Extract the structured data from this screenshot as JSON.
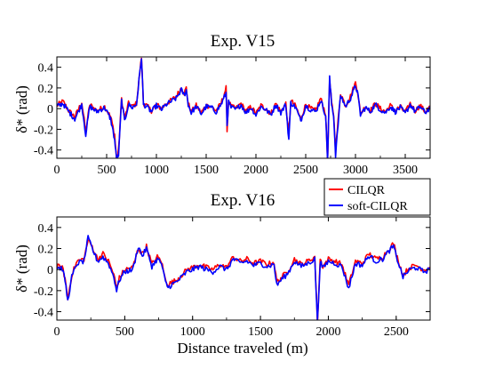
{
  "chart_data": [
    {
      "type": "line",
      "title": "Exp. V15",
      "xlabel": "",
      "ylabel": "δ* (rad)",
      "xlim": [
        0,
        3750
      ],
      "ylim": [
        -0.48,
        0.5
      ],
      "xticks": [
        0,
        500,
        1000,
        1500,
        2000,
        2500,
        3000,
        3500
      ],
      "yticks": [
        -0.4,
        -0.2,
        0,
        0.2,
        0.4
      ],
      "ytick_labels": [
        "-0.4",
        "-0.2",
        "0",
        "0.2",
        "0.4"
      ],
      "grid": false,
      "series": [
        {
          "name": "CILQR",
          "color": "#ff0000",
          "x": [
            0,
            60,
            120,
            180,
            250,
            290,
            330,
            400,
            480,
            540,
            580,
            600,
            620,
            650,
            680,
            720,
            760,
            800,
            850,
            870,
            900,
            950,
            1000,
            1050,
            1100,
            1150,
            1200,
            1250,
            1280,
            1300,
            1320,
            1350,
            1400,
            1450,
            1500,
            1550,
            1600,
            1650,
            1700,
            1710,
            1725,
            1750,
            1800,
            1850,
            1900,
            1950,
            2000,
            2050,
            2100,
            2150,
            2200,
            2250,
            2300,
            2330,
            2350,
            2400,
            2450,
            2500,
            2550,
            2600,
            2650,
            2700,
            2720,
            2740,
            2760,
            2780,
            2800,
            2850,
            2900,
            2950,
            3000,
            3020,
            3050,
            3100,
            3150,
            3200,
            3250,
            3300,
            3350,
            3400,
            3450,
            3500,
            3550,
            3600,
            3650,
            3700,
            3750
          ],
          "values": [
            0.03,
            0.07,
            -0.02,
            -0.08,
            0.06,
            -0.22,
            0.04,
            -0.02,
            0.02,
            -0.08,
            -0.25,
            -0.5,
            -0.4,
            0.1,
            -0.1,
            0.05,
            0.02,
            0.05,
            0.5,
            0.05,
            0.03,
            -0.02,
            0.04,
            0.0,
            0.05,
            0.08,
            0.12,
            0.2,
            0.15,
            0.2,
            0.05,
            -0.03,
            0.03,
            -0.04,
            0.03,
            0.02,
            -0.02,
            0.05,
            0.2,
            -0.2,
            0.08,
            0.02,
            0.0,
            0.05,
            -0.03,
            0.02,
            -0.05,
            0.03,
            0.0,
            -0.05,
            0.05,
            -0.03,
            0.05,
            -0.25,
            0.08,
            0.02,
            -0.1,
            0.04,
            0.0,
            -0.02,
            0.1,
            -0.05,
            -0.5,
            0.28,
            0.05,
            -0.05,
            -0.4,
            0.15,
            0.03,
            0.12,
            0.25,
            0.18,
            -0.05,
            0.02,
            -0.02,
            0.05,
            0.0,
            -0.03,
            0.03,
            -0.02,
            0.02,
            -0.04,
            0.05,
            -0.02,
            0.03,
            -0.03,
            0.02
          ]
        },
        {
          "name": "soft-CILQR",
          "color": "#0000ff",
          "x": [
            0,
            60,
            120,
            180,
            250,
            290,
            330,
            400,
            480,
            540,
            580,
            600,
            620,
            650,
            680,
            720,
            760,
            800,
            850,
            870,
            900,
            950,
            1000,
            1050,
            1100,
            1150,
            1200,
            1250,
            1280,
            1300,
            1320,
            1350,
            1400,
            1450,
            1500,
            1550,
            1600,
            1650,
            1700,
            1710,
            1725,
            1750,
            1800,
            1850,
            1900,
            1950,
            2000,
            2050,
            2100,
            2150,
            2200,
            2250,
            2300,
            2330,
            2350,
            2400,
            2450,
            2500,
            2550,
            2600,
            2650,
            2700,
            2720,
            2740,
            2760,
            2780,
            2800,
            2850,
            2900,
            2950,
            3000,
            3020,
            3050,
            3100,
            3150,
            3200,
            3250,
            3300,
            3350,
            3400,
            3450,
            3500,
            3550,
            3600,
            3650,
            3700,
            3750
          ],
          "values": [
            0.02,
            0.05,
            -0.03,
            -0.1,
            0.04,
            -0.25,
            0.02,
            -0.03,
            0.01,
            -0.1,
            -0.3,
            -0.5,
            -0.45,
            0.08,
            -0.12,
            0.04,
            0.01,
            0.04,
            0.5,
            0.04,
            0.02,
            -0.03,
            0.03,
            -0.01,
            0.04,
            0.07,
            0.1,
            0.18,
            0.13,
            0.18,
            0.04,
            -0.04,
            0.02,
            -0.05,
            0.02,
            0.01,
            -0.03,
            0.04,
            0.15,
            -0.15,
            0.06,
            0.01,
            -0.01,
            0.04,
            -0.04,
            0.01,
            -0.06,
            0.02,
            -0.01,
            -0.06,
            0.04,
            -0.04,
            0.04,
            -0.3,
            0.06,
            0.01,
            -0.12,
            0.03,
            -0.01,
            -0.03,
            0.08,
            -0.06,
            -0.5,
            0.3,
            0.04,
            -0.06,
            -0.45,
            0.13,
            0.02,
            0.1,
            0.22,
            0.16,
            -0.06,
            0.01,
            -0.03,
            0.04,
            -0.01,
            -0.04,
            0.02,
            -0.03,
            0.01,
            -0.05,
            0.04,
            -0.03,
            0.02,
            -0.04,
            0.01
          ]
        }
      ]
    },
    {
      "type": "line",
      "title": "Exp. V16",
      "xlabel": "Distance traveled (m)",
      "ylabel": "δ* (rad)",
      "xlim": [
        0,
        2750
      ],
      "ylim": [
        -0.48,
        0.5
      ],
      "xticks": [
        0,
        500,
        1000,
        1500,
        2000,
        2500
      ],
      "yticks": [
        -0.4,
        -0.2,
        0,
        0.2,
        0.4
      ],
      "ytick_labels": [
        "-0.4",
        "-0.2",
        "0",
        "0.2",
        "0.4"
      ],
      "grid": false,
      "series": [
        {
          "name": "CILQR",
          "color": "#ff0000",
          "x": [
            0,
            40,
            60,
            80,
            110,
            150,
            200,
            230,
            260,
            300,
            340,
            380,
            420,
            440,
            460,
            500,
            560,
            600,
            630,
            660,
            700,
            740,
            770,
            800,
            820,
            850,
            880,
            920,
            960,
            1000,
            1050,
            1100,
            1150,
            1200,
            1250,
            1300,
            1350,
            1400,
            1450,
            1500,
            1550,
            1600,
            1620,
            1650,
            1700,
            1750,
            1800,
            1850,
            1900,
            1920,
            1940,
            1960,
            2000,
            2050,
            2100,
            2150,
            2200,
            2250,
            2300,
            2350,
            2400,
            2450,
            2480,
            2500,
            2550,
            2600,
            2650,
            2700,
            2750
          ],
          "values": [
            0.03,
            0.02,
            -0.08,
            -0.28,
            -0.05,
            0.08,
            0.1,
            0.28,
            0.22,
            0.1,
            0.15,
            0.08,
            -0.05,
            -0.18,
            -0.08,
            0.0,
            0.02,
            0.2,
            0.15,
            0.22,
            0.05,
            0.12,
            0.08,
            -0.1,
            -0.14,
            -0.12,
            -0.1,
            -0.05,
            0.0,
            0.02,
            0.05,
            0.02,
            0.0,
            0.05,
            0.02,
            0.12,
            0.08,
            0.1,
            0.06,
            0.08,
            0.05,
            0.07,
            -0.12,
            -0.08,
            -0.02,
            0.1,
            0.05,
            0.08,
            0.12,
            -0.5,
            0.1,
            0.03,
            0.1,
            0.08,
            0.05,
            -0.15,
            0.08,
            0.06,
            0.15,
            0.1,
            0.12,
            0.2,
            0.25,
            0.15,
            -0.05,
            0.02,
            0.04,
            0.0,
            0.02
          ]
        },
        {
          "name": "soft-CILQR",
          "color": "#0000ff",
          "x": [
            0,
            40,
            60,
            80,
            110,
            150,
            200,
            230,
            260,
            300,
            340,
            380,
            420,
            440,
            460,
            500,
            560,
            600,
            630,
            660,
            700,
            740,
            770,
            800,
            820,
            850,
            880,
            920,
            960,
            1000,
            1050,
            1100,
            1150,
            1200,
            1250,
            1300,
            1350,
            1400,
            1450,
            1500,
            1550,
            1600,
            1620,
            1650,
            1700,
            1750,
            1800,
            1850,
            1900,
            1920,
            1940,
            1960,
            2000,
            2050,
            2100,
            2150,
            2200,
            2250,
            2300,
            2350,
            2400,
            2450,
            2480,
            2500,
            2550,
            2600,
            2650,
            2700,
            2750
          ],
          "values": [
            0.02,
            0.01,
            -0.1,
            -0.3,
            -0.07,
            0.06,
            0.08,
            0.3,
            0.2,
            0.08,
            0.12,
            0.06,
            -0.07,
            -0.2,
            -0.1,
            -0.02,
            0.0,
            0.22,
            0.13,
            0.2,
            0.03,
            0.1,
            0.06,
            -0.12,
            -0.17,
            -0.14,
            -0.12,
            -0.07,
            -0.02,
            0.0,
            0.03,
            0.0,
            -0.02,
            0.03,
            0.0,
            0.1,
            0.06,
            0.08,
            0.04,
            0.06,
            0.03,
            0.05,
            -0.15,
            -0.1,
            -0.04,
            0.08,
            0.03,
            0.06,
            0.1,
            -0.5,
            0.08,
            0.01,
            0.08,
            0.06,
            0.03,
            -0.18,
            0.06,
            0.04,
            0.13,
            0.08,
            0.1,
            0.18,
            0.22,
            0.13,
            -0.07,
            0.0,
            0.02,
            -0.02,
            0.0
          ]
        }
      ]
    }
  ],
  "legend": {
    "placement": "between panels, right",
    "items": [
      {
        "label": "CILQR",
        "color": "#ff0000"
      },
      {
        "label": "soft-CILQR",
        "color": "#0000ff"
      }
    ]
  }
}
